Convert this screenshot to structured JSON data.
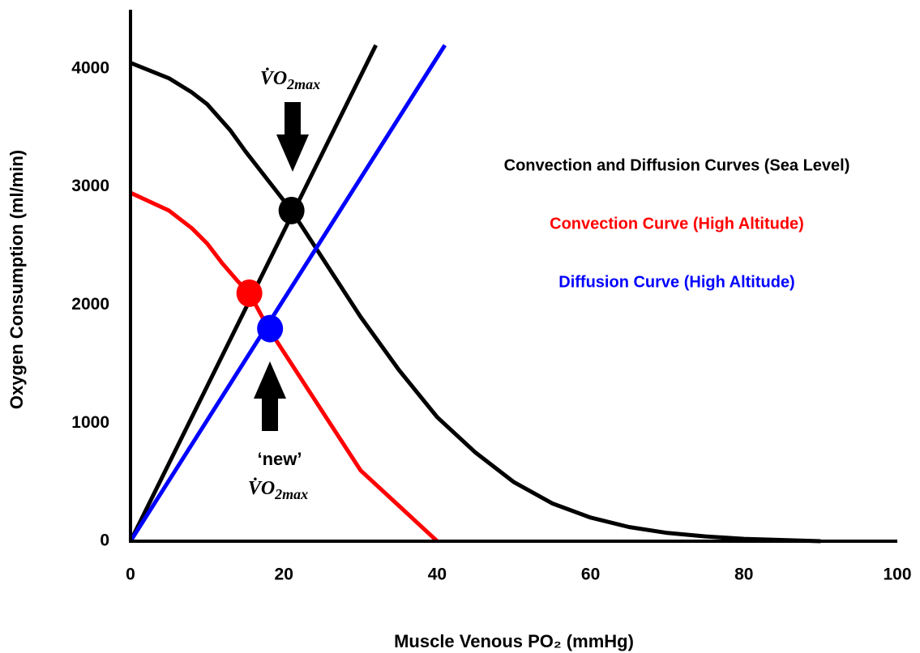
{
  "chart_data": {
    "type": "line",
    "xlabel": "Muscle Venous PO₂ (mmHg)",
    "ylabel": "Oxygen Consumption (ml/min)",
    "xlim": [
      0,
      100
    ],
    "ylim": [
      0,
      4500
    ],
    "xticks": [
      0,
      20,
      40,
      60,
      80,
      100
    ],
    "yticks": [
      0,
      1000,
      2000,
      3000,
      4000
    ],
    "grid": false,
    "series": [
      {
        "name": "Convection and Diffusion Curves (Sea Level)",
        "color": "#000000",
        "x": [
          0,
          5,
          8,
          10,
          13,
          15,
          18,
          21,
          25,
          30,
          35,
          40,
          45,
          50,
          55,
          60,
          65,
          70,
          75,
          80,
          90
        ],
        "values": [
          4050,
          3920,
          3800,
          3700,
          3480,
          3300,
          3050,
          2800,
          2400,
          1900,
          1450,
          1050,
          750,
          500,
          320,
          200,
          120,
          70,
          40,
          20,
          0
        ]
      },
      {
        "color": "#000000",
        "x": [
          0,
          32
        ],
        "values": [
          0,
          4200
        ]
      },
      {
        "name": "Convection Curve (High Altitude)",
        "color": "#ff0000",
        "x": [
          0,
          5,
          8,
          10,
          12,
          14,
          15.5,
          18,
          22,
          26,
          30,
          35,
          40
        ],
        "values": [
          2950,
          2800,
          2650,
          2520,
          2350,
          2200,
          2100,
          1800,
          1400,
          1000,
          600,
          300,
          0
        ]
      },
      {
        "name": "Diffusion Curve (High Altitude)",
        "color": "#0000ff",
        "x": [
          0,
          41
        ],
        "values": [
          0,
          4200
        ]
      }
    ],
    "markers": [
      {
        "x": 21,
        "y": 2800,
        "color": "#000000"
      },
      {
        "x": 15.5,
        "y": 2100,
        "color": "#ff0000"
      },
      {
        "x": 18.2,
        "y": 1800,
        "color": "#0000ff"
      }
    ],
    "annotations": [
      {
        "text": "V̇O",
        "sub": "2max"
      },
      {
        "text": "‘new’"
      },
      {
        "text": "V̇O",
        "sub": "2max"
      }
    ]
  }
}
